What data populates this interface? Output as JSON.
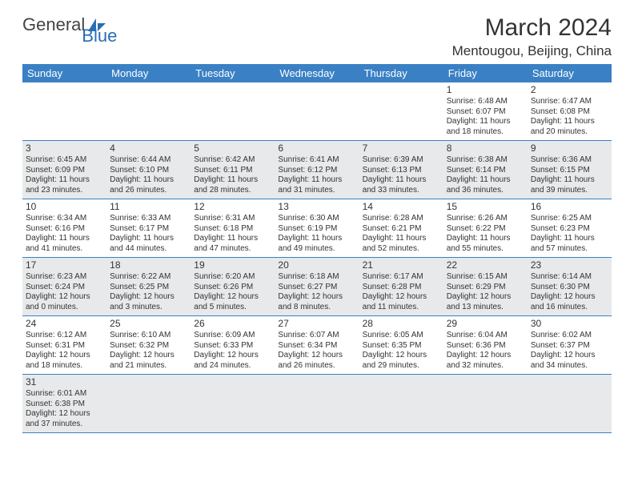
{
  "brand": {
    "part1": "General",
    "part2": "Blue"
  },
  "title": "March 2024",
  "location": "Mentougou, Beijing, China",
  "days": [
    "Sunday",
    "Monday",
    "Tuesday",
    "Wednesday",
    "Thursday",
    "Friday",
    "Saturday"
  ],
  "colors": {
    "header_bg": "#3a80c4",
    "header_fg": "#ffffff",
    "row_alt_bg": "#e8e9ea",
    "row_bg": "#ffffff",
    "line": "#3a80c4",
    "text": "#333333"
  },
  "weeks": [
    [
      null,
      null,
      null,
      null,
      null,
      {
        "n": "1",
        "sr": "Sunrise: 6:48 AM",
        "ss": "Sunset: 6:07 PM",
        "dl1": "Daylight: 11 hours",
        "dl2": "and 18 minutes."
      },
      {
        "n": "2",
        "sr": "Sunrise: 6:47 AM",
        "ss": "Sunset: 6:08 PM",
        "dl1": "Daylight: 11 hours",
        "dl2": "and 20 minutes."
      }
    ],
    [
      {
        "n": "3",
        "sr": "Sunrise: 6:45 AM",
        "ss": "Sunset: 6:09 PM",
        "dl1": "Daylight: 11 hours",
        "dl2": "and 23 minutes."
      },
      {
        "n": "4",
        "sr": "Sunrise: 6:44 AM",
        "ss": "Sunset: 6:10 PM",
        "dl1": "Daylight: 11 hours",
        "dl2": "and 26 minutes."
      },
      {
        "n": "5",
        "sr": "Sunrise: 6:42 AM",
        "ss": "Sunset: 6:11 PM",
        "dl1": "Daylight: 11 hours",
        "dl2": "and 28 minutes."
      },
      {
        "n": "6",
        "sr": "Sunrise: 6:41 AM",
        "ss": "Sunset: 6:12 PM",
        "dl1": "Daylight: 11 hours",
        "dl2": "and 31 minutes."
      },
      {
        "n": "7",
        "sr": "Sunrise: 6:39 AM",
        "ss": "Sunset: 6:13 PM",
        "dl1": "Daylight: 11 hours",
        "dl2": "and 33 minutes."
      },
      {
        "n": "8",
        "sr": "Sunrise: 6:38 AM",
        "ss": "Sunset: 6:14 PM",
        "dl1": "Daylight: 11 hours",
        "dl2": "and 36 minutes."
      },
      {
        "n": "9",
        "sr": "Sunrise: 6:36 AM",
        "ss": "Sunset: 6:15 PM",
        "dl1": "Daylight: 11 hours",
        "dl2": "and 39 minutes."
      }
    ],
    [
      {
        "n": "10",
        "sr": "Sunrise: 6:34 AM",
        "ss": "Sunset: 6:16 PM",
        "dl1": "Daylight: 11 hours",
        "dl2": "and 41 minutes."
      },
      {
        "n": "11",
        "sr": "Sunrise: 6:33 AM",
        "ss": "Sunset: 6:17 PM",
        "dl1": "Daylight: 11 hours",
        "dl2": "and 44 minutes."
      },
      {
        "n": "12",
        "sr": "Sunrise: 6:31 AM",
        "ss": "Sunset: 6:18 PM",
        "dl1": "Daylight: 11 hours",
        "dl2": "and 47 minutes."
      },
      {
        "n": "13",
        "sr": "Sunrise: 6:30 AM",
        "ss": "Sunset: 6:19 PM",
        "dl1": "Daylight: 11 hours",
        "dl2": "and 49 minutes."
      },
      {
        "n": "14",
        "sr": "Sunrise: 6:28 AM",
        "ss": "Sunset: 6:21 PM",
        "dl1": "Daylight: 11 hours",
        "dl2": "and 52 minutes."
      },
      {
        "n": "15",
        "sr": "Sunrise: 6:26 AM",
        "ss": "Sunset: 6:22 PM",
        "dl1": "Daylight: 11 hours",
        "dl2": "and 55 minutes."
      },
      {
        "n": "16",
        "sr": "Sunrise: 6:25 AM",
        "ss": "Sunset: 6:23 PM",
        "dl1": "Daylight: 11 hours",
        "dl2": "and 57 minutes."
      }
    ],
    [
      {
        "n": "17",
        "sr": "Sunrise: 6:23 AM",
        "ss": "Sunset: 6:24 PM",
        "dl1": "Daylight: 12 hours",
        "dl2": "and 0 minutes."
      },
      {
        "n": "18",
        "sr": "Sunrise: 6:22 AM",
        "ss": "Sunset: 6:25 PM",
        "dl1": "Daylight: 12 hours",
        "dl2": "and 3 minutes."
      },
      {
        "n": "19",
        "sr": "Sunrise: 6:20 AM",
        "ss": "Sunset: 6:26 PM",
        "dl1": "Daylight: 12 hours",
        "dl2": "and 5 minutes."
      },
      {
        "n": "20",
        "sr": "Sunrise: 6:18 AM",
        "ss": "Sunset: 6:27 PM",
        "dl1": "Daylight: 12 hours",
        "dl2": "and 8 minutes."
      },
      {
        "n": "21",
        "sr": "Sunrise: 6:17 AM",
        "ss": "Sunset: 6:28 PM",
        "dl1": "Daylight: 12 hours",
        "dl2": "and 11 minutes."
      },
      {
        "n": "22",
        "sr": "Sunrise: 6:15 AM",
        "ss": "Sunset: 6:29 PM",
        "dl1": "Daylight: 12 hours",
        "dl2": "and 13 minutes."
      },
      {
        "n": "23",
        "sr": "Sunrise: 6:14 AM",
        "ss": "Sunset: 6:30 PM",
        "dl1": "Daylight: 12 hours",
        "dl2": "and 16 minutes."
      }
    ],
    [
      {
        "n": "24",
        "sr": "Sunrise: 6:12 AM",
        "ss": "Sunset: 6:31 PM",
        "dl1": "Daylight: 12 hours",
        "dl2": "and 18 minutes."
      },
      {
        "n": "25",
        "sr": "Sunrise: 6:10 AM",
        "ss": "Sunset: 6:32 PM",
        "dl1": "Daylight: 12 hours",
        "dl2": "and 21 minutes."
      },
      {
        "n": "26",
        "sr": "Sunrise: 6:09 AM",
        "ss": "Sunset: 6:33 PM",
        "dl1": "Daylight: 12 hours",
        "dl2": "and 24 minutes."
      },
      {
        "n": "27",
        "sr": "Sunrise: 6:07 AM",
        "ss": "Sunset: 6:34 PM",
        "dl1": "Daylight: 12 hours",
        "dl2": "and 26 minutes."
      },
      {
        "n": "28",
        "sr": "Sunrise: 6:05 AM",
        "ss": "Sunset: 6:35 PM",
        "dl1": "Daylight: 12 hours",
        "dl2": "and 29 minutes."
      },
      {
        "n": "29",
        "sr": "Sunrise: 6:04 AM",
        "ss": "Sunset: 6:36 PM",
        "dl1": "Daylight: 12 hours",
        "dl2": "and 32 minutes."
      },
      {
        "n": "30",
        "sr": "Sunrise: 6:02 AM",
        "ss": "Sunset: 6:37 PM",
        "dl1": "Daylight: 12 hours",
        "dl2": "and 34 minutes."
      }
    ],
    [
      {
        "n": "31",
        "sr": "Sunrise: 6:01 AM",
        "ss": "Sunset: 6:38 PM",
        "dl1": "Daylight: 12 hours",
        "dl2": "and 37 minutes."
      },
      null,
      null,
      null,
      null,
      null,
      null
    ]
  ]
}
